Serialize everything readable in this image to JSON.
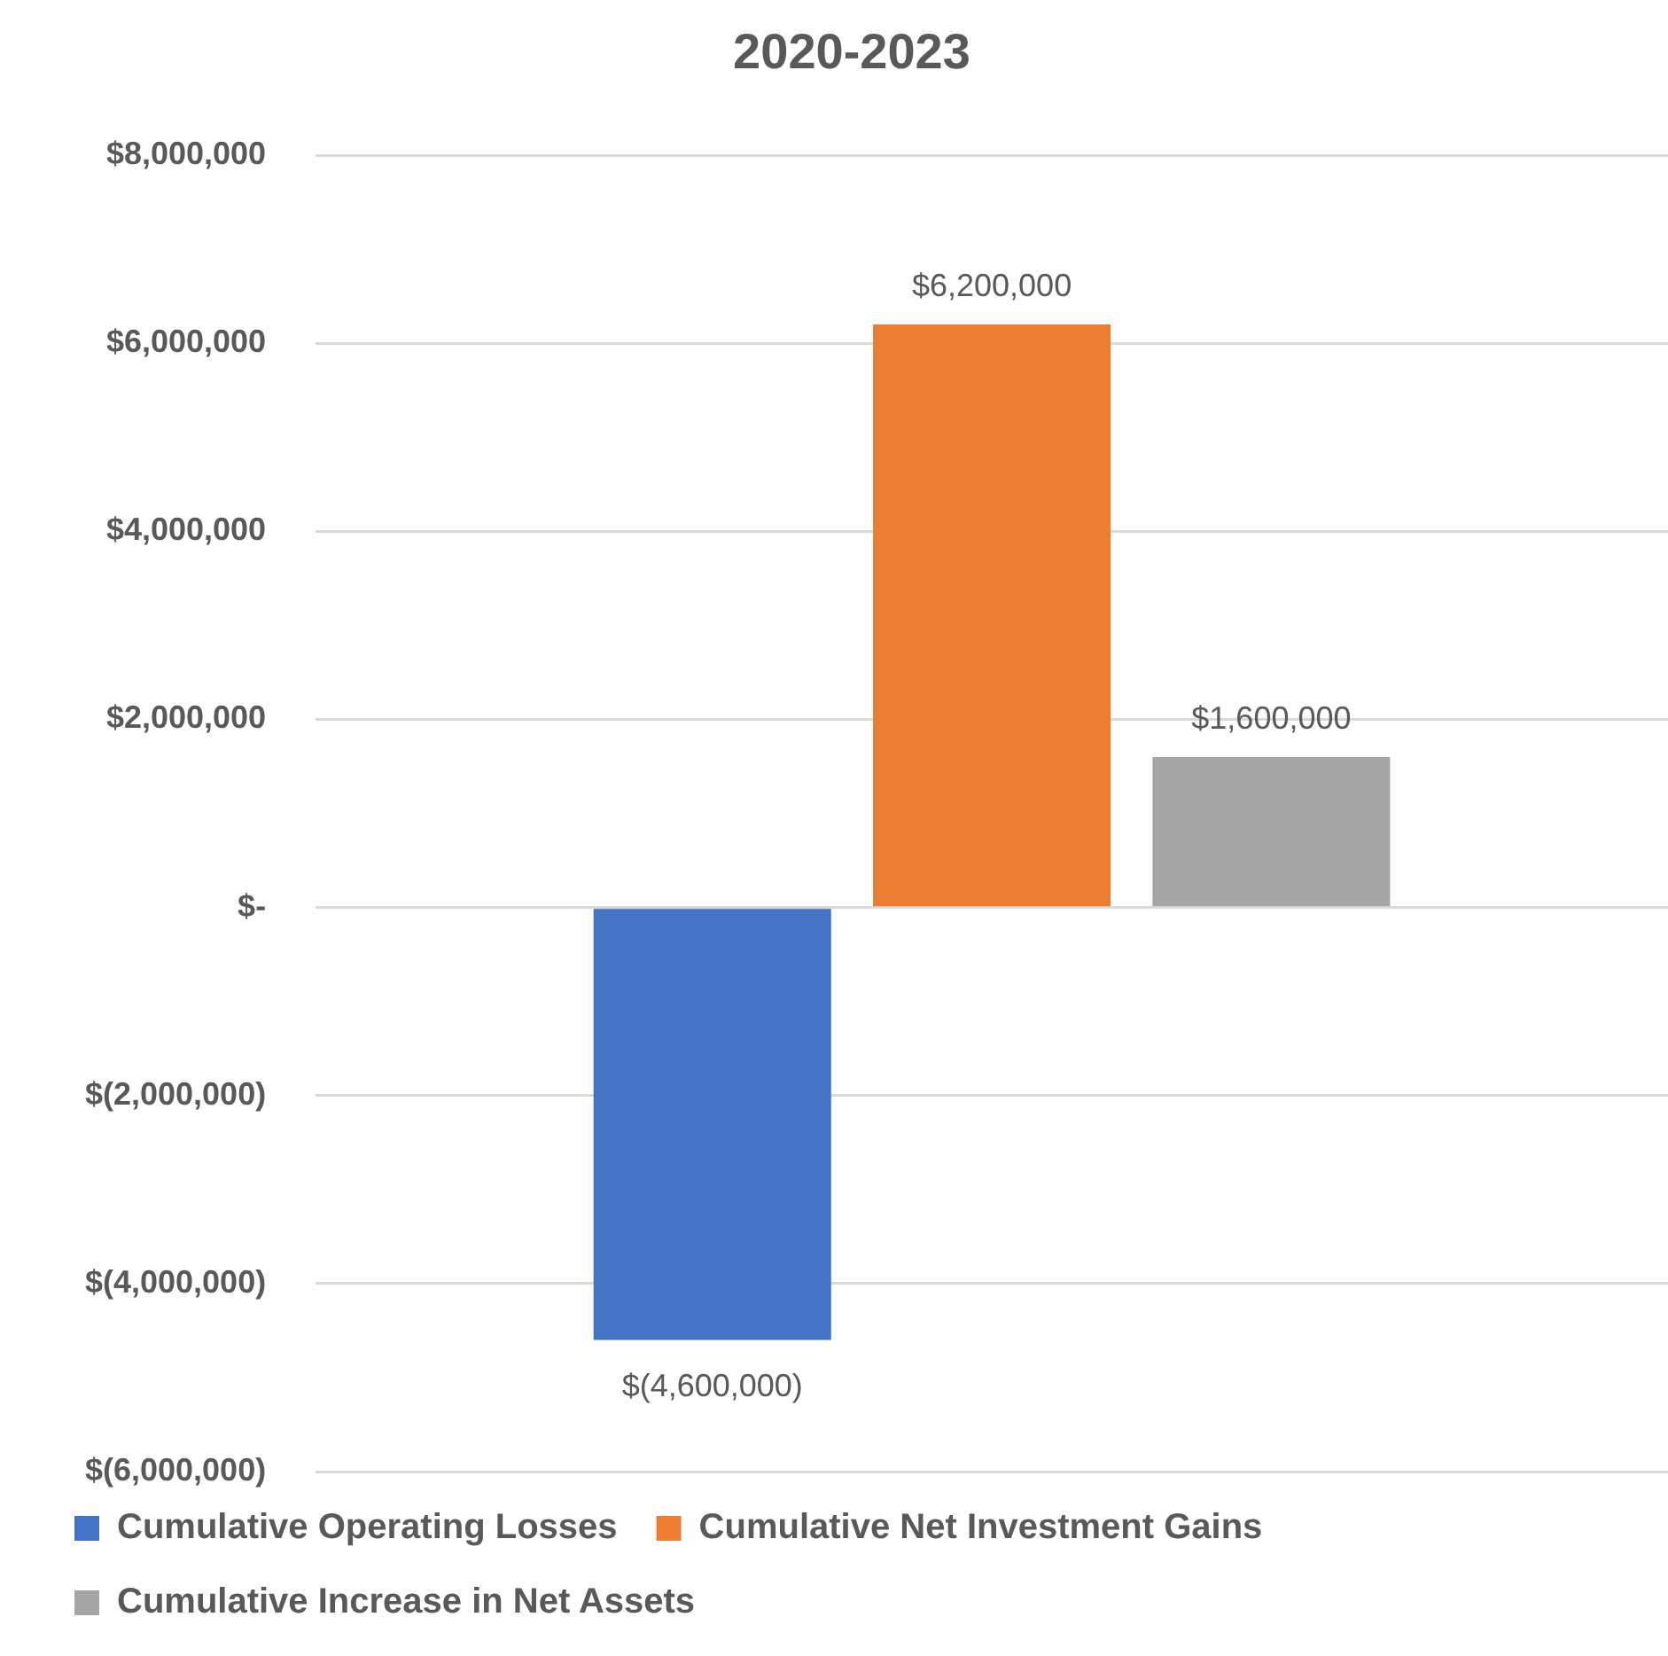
{
  "chart_data": {
    "type": "bar",
    "title": "2020-2023",
    "categories": [
      null
    ],
    "series": [
      {
        "name": "Cumulative Operating Losses",
        "color": "#4472c4",
        "values": [
          -4600000
        ],
        "value_labels": [
          "$(4,600,000)"
        ]
      },
      {
        "name": "Cumulative Net Investment Gains",
        "color": "#ed7d31",
        "values": [
          6200000
        ],
        "value_labels": [
          "$6,200,000"
        ]
      },
      {
        "name": "Cumulative Increase in Net Assets",
        "color": "#a5a5a5",
        "values": [
          1600000
        ],
        "value_labels": [
          "$1,600,000"
        ]
      }
    ],
    "ylim": [
      -6000000,
      8000000
    ],
    "yticks": [
      {
        "value": -6000000,
        "label": "$(6,000,000)"
      },
      {
        "value": -4000000,
        "label": "$(4,000,000)"
      },
      {
        "value": -2000000,
        "label": "$(2,000,000)"
      },
      {
        "value": 0,
        "label": "$-"
      },
      {
        "value": 2000000,
        "label": "$2,000,000"
      },
      {
        "value": 4000000,
        "label": "$4,000,000"
      },
      {
        "value": 6000000,
        "label": "$6,000,000"
      },
      {
        "value": 8000000,
        "label": "$8,000,000"
      }
    ],
    "grid": "y",
    "legend": "bottom",
    "tick_labels": "y"
  }
}
